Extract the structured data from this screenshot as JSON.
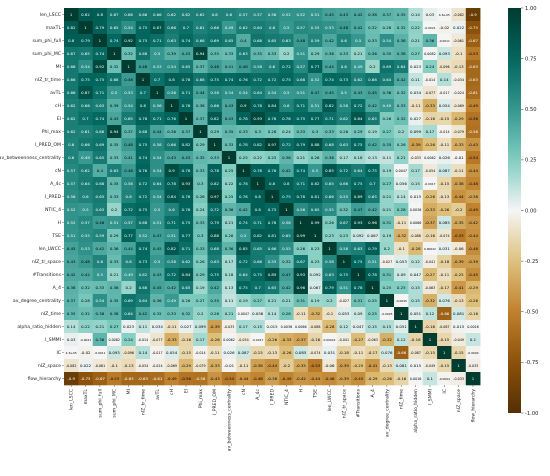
{
  "chart_data": {
    "type": "heatmap",
    "labels": [
      "len_LSCC",
      "maxTL",
      "sum_phi_full",
      "sum_phi_MC",
      "MI",
      "nIZ_tr_time",
      "avTL",
      "cH",
      "EI",
      "Phi_max",
      "I_PRED_OM",
      "av_betweenness_centrality",
      "cN",
      "A_4c",
      "I_PRED",
      "NTIC_4",
      "H",
      "TSE",
      "len_LWCC",
      "nIZ_tr_space",
      "#Transitions",
      "A_4",
      "av_degree_centrality",
      "nIZ_time",
      "alpha_ratio_hidden",
      "I_SMMI",
      "IC",
      "nIZ_space",
      "flow_hierarchy"
    ],
    "matrix": [
      [
        "1",
        "0.82",
        "0.8",
        "0.67",
        "0.66",
        "0.66",
        "0.66",
        "0.62",
        "0.62",
        "0.62",
        "0.6",
        "0.6",
        "0.57",
        "0.57",
        "0.56",
        "0.52",
        "0.52",
        "0.51",
        "0.45",
        "0.43",
        "0.42",
        "0.38",
        "0.37",
        "0.35",
        "0.14",
        "0.03",
        "4.3e-05",
        "-0.082",
        "-0.9"
      ],
      [
        "0.82",
        "1",
        "0.79",
        "0.65",
        "0.54",
        "0.75",
        "0.87",
        "0.66",
        "0.7",
        "0.61",
        "0.66",
        "0.49",
        "0.62",
        "0.64",
        "0.6",
        "0.5",
        "0.57",
        "0.55",
        "0.53",
        "0.48",
        "0.42",
        "0.32",
        "0.28",
        "0.32",
        "0.22",
        "-0.0021",
        "-0.02",
        "0.022",
        "-0.75"
      ],
      [
        "0.8",
        "0.79",
        "1",
        "0.74",
        "0.92",
        "0.75",
        "0.71",
        "0.63",
        "0.74",
        "0.66",
        "0.69",
        "0.65",
        "0.4",
        "0.68",
        "0.65",
        "0.63",
        "0.48",
        "0.59",
        "0.42",
        "0.6",
        "0.5",
        "0.33",
        "0.54",
        "0.38",
        "0.21",
        "0.36",
        "-0.0011",
        "-0.061",
        "-0.67"
      ],
      [
        "0.67",
        "0.65",
        "0.74",
        "1",
        "0.32",
        "0.68",
        "0.5",
        "0.39",
        "0.43",
        "0.94",
        "0.35",
        "0.33",
        "0.63",
        "0.35",
        "0.33",
        "0.2",
        "0.51",
        "0.29",
        "0.36",
        "0.33",
        "0.21",
        "0.36",
        "0.35",
        "0.38",
        "0.27",
        "0.0082",
        "0.093",
        "-0.1",
        "-0.53"
      ],
      [
        "0.66",
        "0.54",
        "0.92",
        "0.32",
        "1",
        "0.48",
        "0.53",
        "0.54",
        "0.65",
        "0.37",
        "0.48",
        "0.41",
        "0.48",
        "0.58",
        "0.6",
        "0.72",
        "0.57",
        "0.77",
        "0.44",
        "0.6",
        "0.49",
        "0.2",
        "0.69",
        "0.64",
        "0.023",
        "0.24",
        "-0.096",
        "-0.13",
        "-0.63"
      ],
      [
        "0.66",
        "0.75",
        "0.75",
        "0.68",
        "0.48",
        "1",
        "0.7",
        "0.8",
        "0.78",
        "0.68",
        "0.75",
        "0.74",
        "0.76",
        "0.72",
        "0.72",
        "0.75",
        "0.68",
        "0.52",
        "0.74",
        "0.73",
        "0.62",
        "0.68",
        "0.64",
        "0.42",
        "0.11",
        "-0.014",
        "0.14",
        "-0.034",
        "-0.63"
      ],
      [
        "0.66",
        "0.87",
        "0.71",
        "0.5",
        "0.53",
        "0.7",
        "1",
        "0.56",
        "0.71",
        "0.44",
        "0.58",
        "0.54",
        "0.54",
        "0.64",
        "0.54",
        "0.5",
        "0.51",
        "0.47",
        "0.45",
        "0.5",
        "0.43",
        "0.45",
        "0.36",
        "0.32",
        "0.034",
        "-0.077",
        "-0.017",
        "-0.024",
        "-0.61"
      ],
      [
        "0.62",
        "0.66",
        "0.63",
        "0.39",
        "0.54",
        "0.8",
        "0.56",
        "1",
        "0.76",
        "0.36",
        "0.66",
        "0.43",
        "0.9",
        "0.78",
        "0.84",
        "0.6",
        "0.71",
        "0.51",
        "0.82",
        "0.58",
        "0.72",
        "0.42",
        "0.49",
        "0.33",
        "-0.11",
        "-0.33",
        "0.054",
        "-0.069",
        "-0.49"
      ],
      [
        "0.62",
        "0.7",
        "0.74",
        "0.43",
        "0.65",
        "0.78",
        "0.71",
        "0.76",
        "1",
        "0.37",
        "0.82",
        "0.43",
        "0.78",
        "0.93",
        "0.78",
        "0.76",
        "0.75",
        "0.77",
        "0.71",
        "0.62",
        "0.84",
        "0.65",
        "0.26",
        "0.32",
        "0.027",
        "-0.16",
        "-0.15",
        "-0.29",
        "-0.56"
      ],
      [
        "0.62",
        "0.61",
        "0.66",
        "0.94",
        "0.37",
        "0.68",
        "0.44",
        "0.36",
        "0.37",
        "1",
        "0.29",
        "0.35",
        "0.33",
        "0.3",
        "0.28",
        "0.24",
        "0.33",
        "0.3",
        "0.33",
        "0.26",
        "0.29",
        "0.19",
        "0.27",
        "0.2",
        "0.099",
        "0.17",
        "-0.014",
        "-0.079",
        "-0.58"
      ],
      [
        "0.6",
        "0.66",
        "0.69",
        "0.35",
        "0.48",
        "0.75",
        "0.58",
        "0.66",
        "0.82",
        "0.29",
        "1",
        "0.33",
        "0.78",
        "0.82",
        "0.97",
        "0.72",
        "0.79",
        "0.88",
        "0.68",
        "0.63",
        "0.75",
        "0.42",
        "0.35",
        "0.26",
        "-0.39",
        "-0.26",
        "-0.11",
        "-0.33",
        "-0.43"
      ],
      [
        "0.6",
        "0.49",
        "0.65",
        "0.33",
        "0.41",
        "0.74",
        "0.54",
        "0.43",
        "0.43",
        "0.35",
        "0.33",
        "1",
        "0.25",
        "0.22",
        "0.25",
        "0.36",
        "0.21",
        "0.26",
        "0.36",
        "0.17",
        "0.18",
        "0.13",
        "0.11",
        "0.21",
        "-0.033",
        "0.0062",
        "0.026",
        "-0.01",
        "-0.54"
      ],
      [
        "0.57",
        "0.62",
        "0.4",
        "0.63",
        "0.48",
        "0.76",
        "0.54",
        "0.9",
        "0.78",
        "0.33",
        "0.78",
        "0.25",
        "1",
        "0.78",
        "0.76",
        "0.42",
        "0.74",
        "0.5",
        "0.85",
        "0.72",
        "0.64",
        "0.75",
        "0.19",
        "0.0047",
        "0.17",
        "-0.054",
        "0.087",
        "-0.11",
        "-0.44"
      ],
      [
        "0.57",
        "0.64",
        "0.68",
        "0.35",
        "0.58",
        "0.72",
        "0.64",
        "0.78",
        "0.93",
        "0.3",
        "0.82",
        "0.22",
        "0.78",
        "1",
        "0.8",
        "0.8",
        "0.71",
        "0.82",
        "0.65",
        "0.66",
        "0.75",
        "0.7",
        "0.27",
        "0.056",
        "0.15",
        "-0.0017",
        "-0.15",
        "-0.38",
        "-0.48"
      ],
      [
        "0.56",
        "0.6",
        "0.65",
        "0.33",
        "0.6",
        "0.72",
        "0.54",
        "0.84",
        "0.78",
        "0.28",
        "0.97",
        "0.25",
        "0.76",
        "0.8",
        "1",
        "0.75",
        "0.78",
        "0.81",
        "0.66",
        "0.55",
        "0.89",
        "0.65",
        "0.21",
        "0.14",
        "0.015",
        "-0.26",
        "-0.13",
        "-0.44",
        "-0.38"
      ],
      [
        "0.52",
        "0.5",
        "0.63",
        "0.2",
        "0.72",
        "0.75",
        "0.5",
        "0.6",
        "0.76",
        "0.24",
        "0.72",
        "0.36",
        "0.42",
        "0.8",
        "0.75",
        "1",
        "0.56",
        "0.65",
        "0.55",
        "0.32",
        "0.47",
        "0.42",
        "0.21",
        "0.28",
        "0.0036",
        "-0.33",
        "-0.26",
        "-0.2",
        "-0.49"
      ],
      [
        "0.52",
        "0.57",
        "0.48",
        "0.51",
        "0.57",
        "0.68",
        "0.51",
        "0.71",
        "0.75",
        "0.33",
        "0.79",
        "0.21",
        "0.74",
        "0.71",
        "0.78",
        "0.56",
        "1",
        "0.99",
        "0.26",
        "0.67",
        "0.93",
        "0.96",
        "0.31",
        "-0.11",
        "0.0066",
        "-0.37",
        "0.085",
        "-0.35",
        "-0.42"
      ],
      [
        "0.51",
        "0.55",
        "0.59",
        "0.29",
        "0.77",
        "0.52",
        "0.47",
        "0.51",
        "0.77",
        "0.3",
        "0.88",
        "0.26",
        "0.5",
        "0.82",
        "0.81",
        "0.65",
        "0.99",
        "1",
        "0.23",
        "0.23",
        "0.092",
        "0.067",
        "0.19",
        "-0.32",
        "-0.088",
        "-0.16",
        "-0.074",
        "-0.53",
        "-0.44"
      ],
      [
        "0.45",
        "0.53",
        "0.42",
        "0.36",
        "0.44",
        "0.74",
        "0.45",
        "0.82",
        "0.71",
        "0.33",
        "0.68",
        "0.36",
        "0.85",
        "0.65",
        "0.66",
        "0.55",
        "0.26",
        "0.23",
        "1",
        "0.58",
        "0.63",
        "0.79",
        "0.2",
        "-0.1",
        "-0.28",
        "0.00022",
        "0.031",
        "-0.06",
        "-0.46"
      ],
      [
        "0.43",
        "0.48",
        "0.6",
        "0.33",
        "0.6",
        "0.73",
        "0.5",
        "0.58",
        "0.62",
        "0.26",
        "0.63",
        "0.17",
        "0.72",
        "0.66",
        "0.55",
        "0.32",
        "0.67",
        "0.23",
        "0.58",
        "1",
        "0.75",
        "0.51",
        "-0.027",
        "0.053",
        "0.12",
        "-0.041",
        "-0.18",
        "-0.39",
        "-0.39"
      ],
      [
        "0.42",
        "0.42",
        "0.5",
        "0.21",
        "0.49",
        "0.62",
        "0.43",
        "0.72",
        "0.84",
        "0.29",
        "0.75",
        "0.18",
        "0.64",
        "0.75",
        "0.89",
        "0.47",
        "0.93",
        "0.092",
        "0.63",
        "0.75",
        "1",
        "0.78",
        "0.31",
        "0.09",
        "0.047",
        "-0.27",
        "-0.11",
        "-0.25",
        "-0.45"
      ],
      [
        "0.38",
        "0.32",
        "0.33",
        "0.36",
        "0.2",
        "0.68",
        "0.45",
        "0.42",
        "0.65",
        "0.19",
        "0.42",
        "0.13",
        "0.75",
        "0.7",
        "0.65",
        "0.42",
        "0.96",
        "0.067",
        "0.79",
        "0.51",
        "0.78",
        "1",
        "0.25",
        "0.25",
        "0.15",
        "-0.063",
        "-0.17",
        "-0.41",
        "-0.29"
      ],
      [
        "0.37",
        "0.28",
        "0.54",
        "0.35",
        "0.69",
        "0.64",
        "0.36",
        "0.49",
        "0.26",
        "0.27",
        "0.35",
        "0.11",
        "0.19",
        "0.27",
        "0.21",
        "0.21",
        "0.31",
        "0.19",
        "0.2",
        "-0.027",
        "0.31",
        "0.25",
        "1",
        "-0.0045",
        "0.15",
        "-0.32",
        "0.076",
        "-0.13",
        "-0.26"
      ],
      [
        "0.35",
        "0.32",
        "0.38",
        "0.38",
        "0.64",
        "0.42",
        "0.32",
        "0.33",
        "0.32",
        "0.2",
        "0.26",
        "0.21",
        "0.0047",
        "0.056",
        "0.14",
        "0.28",
        "-0.11",
        "-0.32",
        "-0.1",
        "0.053",
        "0.09",
        "0.25",
        "-0.0045",
        "1",
        "0.051",
        "0.12",
        "-0.66",
        "0.081",
        "-0.16"
      ],
      [
        "0.14",
        "0.22",
        "0.21",
        "0.27",
        "0.023",
        "0.11",
        "0.034",
        "-0.11",
        "0.027",
        "0.099",
        "-0.39",
        "-0.033",
        "0.17",
        "0.15",
        "0.015",
        "0.0036",
        "0.0066",
        "-0.088",
        "-0.28",
        "0.12",
        "0.047",
        "0.15",
        "0.15",
        "0.051",
        "1",
        "-0.16",
        "-0.087",
        "0.015",
        "0.0016"
      ],
      [
        "0.03",
        "-0.0021",
        "0.36",
        "0.0082",
        "0.24",
        "-0.014",
        "-0.077",
        "-0.33",
        "-0.16",
        "0.17",
        "-0.26",
        "0.0062",
        "-0.054",
        "-0.0017",
        "-0.26",
        "-0.33",
        "-0.37",
        "-0.16",
        "0.00022",
        "-0.041",
        "-0.27",
        "-0.063",
        "-0.32",
        "0.12",
        "-0.16",
        "1",
        "-0.15",
        "-0.049",
        "0.1"
      ],
      [
        "4.3e-05",
        "-0.02",
        "-0.0011",
        "0.093",
        "-0.096",
        "0.14",
        "-0.017",
        "0.054",
        "-0.15",
        "-0.014",
        "-0.11",
        "0.026",
        "0.087",
        "-0.15",
        "-0.13",
        "-0.26",
        "0.085",
        "-0.074",
        "0.031",
        "-0.18",
        "-0.11",
        "-0.17",
        "0.076",
        "-0.66",
        "-0.087",
        "-0.15",
        "1",
        "-0.15",
        "-0.0094"
      ],
      [
        "-0.082",
        "0.022",
        "-0.061",
        "-0.1",
        "-0.13",
        "-0.034",
        "-0.024",
        "-0.069",
        "-0.29",
        "-0.079",
        "-0.33",
        "-0.01",
        "-0.11",
        "-0.38",
        "-0.44",
        "-0.2",
        "-0.35",
        "-0.53",
        "-0.06",
        "-0.39",
        "-0.25",
        "-0.41",
        "-0.13",
        "0.081",
        "0.015",
        "-0.049",
        "-0.15",
        "1",
        "-0.033"
      ],
      [
        "-0.9",
        "-0.75",
        "-0.67",
        "-0.53",
        "-0.63",
        "-0.63",
        "-0.61",
        "-0.49",
        "-0.56",
        "-0.58",
        "-0.43",
        "-0.54",
        "-0.44",
        "-0.48",
        "-0.38",
        "-0.49",
        "-0.42",
        "-0.44",
        "-0.46",
        "-0.39",
        "-0.45",
        "-0.29",
        "-0.26",
        "-0.16",
        "0.0016",
        "0.1",
        "-0.0094",
        "-0.033",
        "1"
      ]
    ],
    "colorbar": {
      "min": -1.0,
      "max": 1.0,
      "ticks": [
        "1.00",
        "0.75",
        "0.50",
        "0.25",
        "0.00",
        "-0.25",
        "-0.50",
        "-0.75",
        "-1.00"
      ],
      "colormap": "BrBG",
      "low_color": "#543005",
      "mid_color": "#f5f5f5",
      "high_color": "#003c30"
    },
    "title": "",
    "xlabel": "",
    "ylabel": ""
  }
}
